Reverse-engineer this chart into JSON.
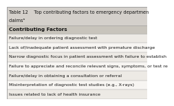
{
  "title_line1": "Table 12    Top contributing factors to emergency departmen",
  "title_line2": "claimsᵃ",
  "header": "Contributing Factors",
  "rows": [
    "Failure/delay in ordering diagnostic test",
    "Lack of/inadequate patient assessment with premature discharge",
    "Narrow diagnostic focus in patient assessment with failure to establish",
    "Failure to appreciate and reconcile relevant signs, symptoms, or test re",
    "Failure/delay in obtaining a consultation or referral",
    "Misinterpretation of diagnostic test studies (e.g., X-rays)",
    "Issues related to lack of health insurance"
  ],
  "title_bg": "#d4d0cb",
  "header_bg": "#c8c4bc",
  "row_bg_odd": "#edeae5",
  "row_bg_even": "#f7f5f2",
  "border_color": "#999999",
  "title_fontsize": 4.8,
  "header_fontsize": 5.2,
  "row_fontsize": 4.6,
  "text_color": "#111111"
}
